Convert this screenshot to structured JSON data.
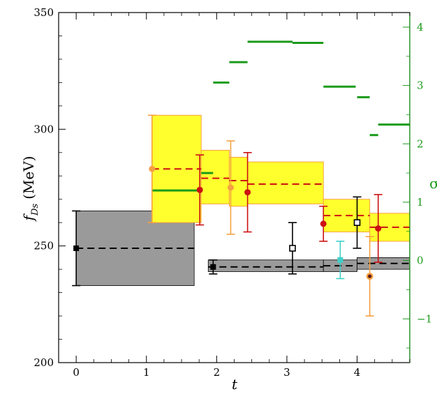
{
  "chart_data": {
    "type": "scatter",
    "title": "",
    "xlabel": "t",
    "ylabel_main": "f",
    "ylabel_sub": "Ds",
    "ylabel_unit": "(MeV)",
    "right_axis_label": "σ",
    "xlim": [
      -0.25,
      4.75
    ],
    "ylim": [
      200,
      350
    ],
    "y2lim": [
      -1.75,
      4.25
    ],
    "grid": false,
    "legend": "none",
    "x_ticks": [
      0,
      1,
      2,
      3,
      4
    ],
    "y_ticks": [
      200,
      250,
      300,
      350
    ],
    "y2_ticks": [
      -1,
      0,
      1,
      2,
      3,
      4
    ],
    "colors": {
      "gray_band": "#9a9a9a",
      "yellow_band": "#ffff2e",
      "yellow_edge": "#f5a142",
      "green": "#1a9b1a",
      "red": "#cc1111",
      "orange": "#f5a142",
      "cyan": "#40d0c8",
      "black": "#000000"
    },
    "gray_bands": [
      {
        "x_start": 0.0,
        "x_end": 1.68,
        "y_low": 233,
        "y_high": 265,
        "central": 249
      },
      {
        "x_start": 1.88,
        "x_end": 3.52,
        "y_low": 239,
        "y_high": 244,
        "central": 241
      },
      {
        "x_start": 3.52,
        "x_end": 4.0,
        "y_low": 239,
        "y_high": 244,
        "central": 241.5
      },
      {
        "x_start": 4.0,
        "x_end": 4.75,
        "y_low": 240,
        "y_high": 245,
        "central": 242.5
      }
    ],
    "yellow_bands": [
      {
        "x_start": 1.08,
        "x_end": 1.78,
        "y_low": 260,
        "y_high": 306,
        "central": 283
      },
      {
        "x_start": 1.78,
        "x_end": 2.18,
        "y_low": 268,
        "y_high": 291,
        "central": 279
      },
      {
        "x_start": 2.18,
        "x_end": 2.44,
        "y_low": 267,
        "y_high": 288,
        "central": 278
      },
      {
        "x_start": 2.44,
        "x_end": 3.52,
        "y_low": 268,
        "y_high": 286,
        "central": 276.5
      },
      {
        "x_start": 3.52,
        "x_end": 4.18,
        "y_low": 256,
        "y_high": 270,
        "central": 263
      },
      {
        "x_start": 4.18,
        "x_end": 4.75,
        "y_low": 252,
        "y_high": 264,
        "central": 258
      }
    ],
    "sigma_segments": [
      {
        "x_start": 1.08,
        "x_end": 1.78,
        "sigma": 1.2
      },
      {
        "x_start": 1.78,
        "x_end": 1.95,
        "sigma": 1.5
      },
      {
        "x_start": 1.95,
        "x_end": 2.18,
        "sigma": 3.05
      },
      {
        "x_start": 2.18,
        "x_end": 2.44,
        "sigma": 3.4
      },
      {
        "x_start": 2.44,
        "x_end": 3.08,
        "sigma": 3.75
      },
      {
        "x_start": 3.08,
        "x_end": 3.52,
        "sigma": 3.73
      },
      {
        "x_start": 3.52,
        "x_end": 3.98,
        "sigma": 2.98
      },
      {
        "x_start": 4.0,
        "x_end": 4.18,
        "sigma": 2.8
      },
      {
        "x_start": 4.18,
        "x_end": 4.3,
        "sigma": 2.15
      },
      {
        "x_start": 4.3,
        "x_end": 4.75,
        "sigma": 2.33
      }
    ],
    "points": [
      {
        "x": 0.0,
        "y": 249,
        "lo": 233,
        "hi": 265,
        "color": "black",
        "marker": "square-filled"
      },
      {
        "x": 1.95,
        "y": 241,
        "lo": 238,
        "hi": 244,
        "color": "black",
        "marker": "square-filled"
      },
      {
        "x": 1.08,
        "y": 283,
        "lo": 260,
        "hi": 306,
        "color": "orange",
        "marker": "circle-filled"
      },
      {
        "x": 1.76,
        "y": 274,
        "lo": 259,
        "hi": 289,
        "color": "red",
        "marker": "circle-filled"
      },
      {
        "x": 2.2,
        "y": 275,
        "lo": 255,
        "hi": 295,
        "color": "orange",
        "marker": "circle-filled"
      },
      {
        "x": 2.44,
        "y": 273,
        "lo": 256,
        "hi": 290,
        "color": "red",
        "marker": "circle-filled"
      },
      {
        "x": 3.08,
        "y": 249,
        "lo": 238,
        "hi": 260,
        "color": "black",
        "marker": "square-open"
      },
      {
        "x": 3.52,
        "y": 259.5,
        "lo": 252,
        "hi": 267,
        "color": "red",
        "marker": "circle-filled"
      },
      {
        "x": 3.76,
        "y": 244,
        "lo": 236,
        "hi": 252,
        "color": "cyan",
        "marker": "square-filled"
      },
      {
        "x": 4.0,
        "y": 260,
        "lo": 249,
        "hi": 271,
        "color": "black",
        "marker": "square-open"
      },
      {
        "x": 4.18,
        "y": 237,
        "lo": 220,
        "hi": 254,
        "color": "orange",
        "marker": "circle-dot"
      },
      {
        "x": 4.3,
        "y": 257.5,
        "lo": 243,
        "hi": 272,
        "color": "red",
        "marker": "circle-filled"
      }
    ]
  }
}
